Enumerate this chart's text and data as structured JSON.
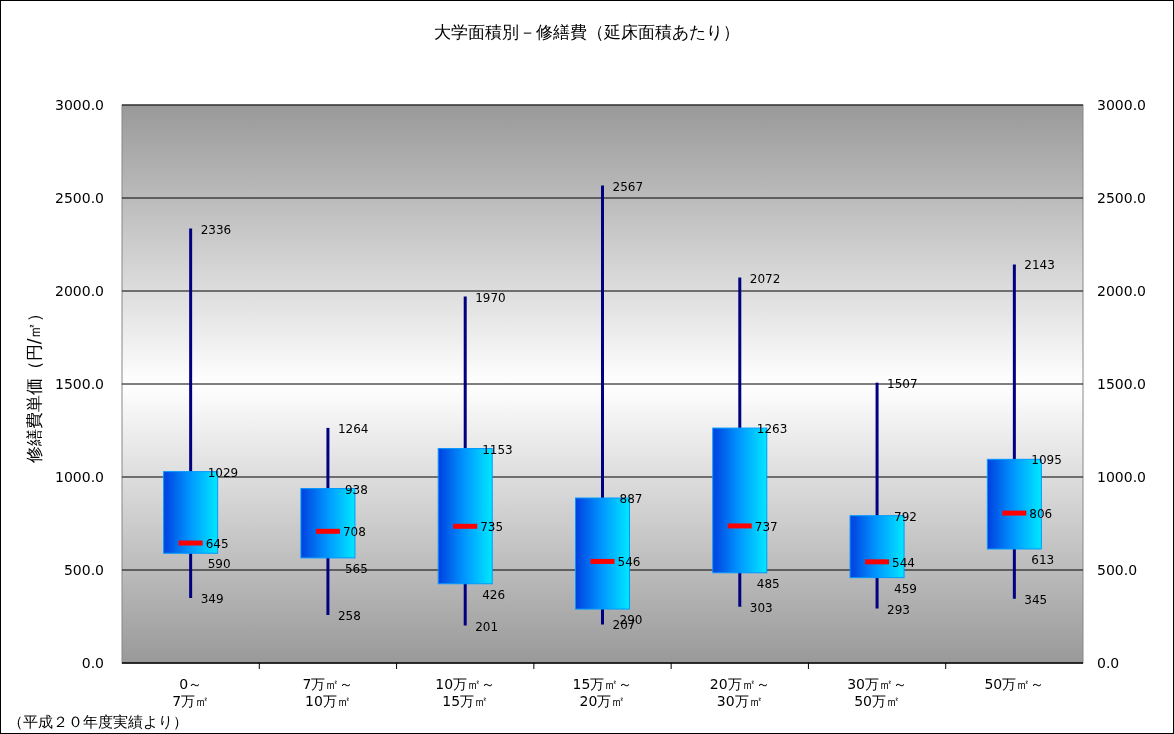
{
  "chart_data": {
    "type": "box",
    "title": "大学面積別－修繕費（延床面積あたり）",
    "ylabel": "修繕費単価（円/㎡）",
    "categories": [
      "0～\n7万㎡",
      "7万㎡～\n10万㎡",
      "10万㎡～\n15万㎡",
      "15万㎡～\n20万㎡",
      "20万㎡～\n30万㎡",
      "30万㎡～\n50万㎡",
      "50万㎡～"
    ],
    "series": [
      {
        "color": "#0099ff",
        "boxes": [
          {
            "low": 349,
            "q1": 590,
            "median": 645,
            "q3": 1029,
            "high": 2336
          },
          {
            "low": 258,
            "q1": 565,
            "median": 708,
            "q3": 938,
            "high": 1264
          },
          {
            "low": 201,
            "q1": 426,
            "median": 735,
            "q3": 1153,
            "high": 1970
          },
          {
            "low": 207,
            "q1": 290,
            "median": 546,
            "q3": 887,
            "high": 2567
          },
          {
            "low": 303,
            "q1": 485,
            "median": 737,
            "q3": 1263,
            "high": 2072
          },
          {
            "low": 293,
            "q1": 459,
            "median": 544,
            "q3": 792,
            "high": 1507
          },
          {
            "low": 345,
            "q1": 613,
            "median": 806,
            "q3": 1095,
            "high": 2143
          }
        ]
      }
    ],
    "ylim": [
      0,
      3000
    ],
    "yticks": [
      {
        "value": 0,
        "label": "0.0"
      },
      {
        "value": 500,
        "label": "500.0"
      },
      {
        "value": 1000,
        "label": "1000.0"
      },
      {
        "value": 1500,
        "label": "1500.0"
      },
      {
        "value": 2000,
        "label": "2000.0"
      },
      {
        "value": 2500,
        "label": "2500.0"
      },
      {
        "value": 3000,
        "label": "3000.0"
      }
    ],
    "y2lim": [
      0,
      3000
    ],
    "y2ticks": [
      {
        "value": 0,
        "label": "0.0"
      },
      {
        "value": 500,
        "label": "500.0"
      },
      {
        "value": 1000,
        "label": "1000.0"
      },
      {
        "value": 1500,
        "label": "1500.0"
      },
      {
        "value": 2000,
        "label": "2000.0"
      },
      {
        "value": 2500,
        "label": "2500.0"
      },
      {
        "value": 3000,
        "label": "3000.0"
      }
    ],
    "grid": "y",
    "annotations": [
      "（平成２０年度実績より）",
      {
        "text": "2336",
        "x": "0～\n7万㎡",
        "y": 2336
      },
      {
        "text": "1029",
        "x": "0～\n7万㎡",
        "y": 1029
      },
      {
        "text": "645",
        "x": "0～\n7万㎡",
        "y": 645
      },
      {
        "text": "590",
        "x": "0～\n7万㎡",
        "y": 590
      },
      {
        "text": "349",
        "x": "0～\n7万㎡",
        "y": 349
      },
      {
        "text": "1264",
        "x": "7万㎡～\n10万㎡",
        "y": 1264
      },
      {
        "text": "938",
        "x": "7万㎡～\n10万㎡",
        "y": 938
      },
      {
        "text": "708",
        "x": "7万㎡～\n10万㎡",
        "y": 708
      },
      {
        "text": "565",
        "x": "7万㎡～\n10万㎡",
        "y": 565
      },
      {
        "text": "258",
        "x": "7万㎡～\n10万㎡",
        "y": 258
      },
      {
        "text": "1970",
        "x": "10万㎡～\n15万㎡",
        "y": 1970
      },
      {
        "text": "1153",
        "x": "10万㎡～\n15万㎡",
        "y": 1153
      },
      {
        "text": "735",
        "x": "10万㎡～\n15万㎡",
        "y": 735
      },
      {
        "text": "426",
        "x": "10万㎡～\n15万㎡",
        "y": 426
      },
      {
        "text": "201",
        "x": "10万㎡～\n15万㎡",
        "y": 201
      },
      {
        "text": "2567",
        "x": "15万㎡～\n20万㎡",
        "y": 2567
      },
      {
        "text": "887",
        "x": "15万㎡～\n20万㎡",
        "y": 887
      },
      {
        "text": "546",
        "x": "15万㎡～\n20万㎡",
        "y": 546
      },
      {
        "text": "290",
        "x": "15万㎡～\n20万㎡",
        "y": 290
      },
      {
        "text": "207",
        "x": "15万㎡～\n20万㎡",
        "y": 207
      },
      {
        "text": "2072",
        "x": "20万㎡～\n30万㎡",
        "y": 2072
      },
      {
        "text": "1263",
        "x": "20万㎡～\n30万㎡",
        "y": 1263
      },
      {
        "text": "737",
        "x": "20万㎡～\n30万㎡",
        "y": 737
      },
      {
        "text": "485",
        "x": "20万㎡～\n30万㎡",
        "y": 485
      },
      {
        "text": "303",
        "x": "20万㎡～\n30万㎡",
        "y": 303
      },
      {
        "text": "1507",
        "x": "30万㎡～\n50万㎡",
        "y": 1507
      },
      {
        "text": "792",
        "x": "30万㎡～\n50万㎡",
        "y": 792
      },
      {
        "text": "544",
        "x": "30万㎡～\n50万㎡",
        "y": 544
      },
      {
        "text": "459",
        "x": "30万㎡～\n50万㎡",
        "y": 459
      },
      {
        "text": "293",
        "x": "30万㎡～\n50万㎡",
        "y": 293
      },
      {
        "text": "2143",
        "x": "50万㎡～",
        "y": 2143
      },
      {
        "text": "1095",
        "x": "50万㎡～",
        "y": 1095
      },
      {
        "text": "806",
        "x": "50万㎡～",
        "y": 806
      },
      {
        "text": "613",
        "x": "50万㎡～",
        "y": 613
      },
      {
        "text": "345",
        "x": "50万㎡～",
        "y": 345
      }
    ]
  }
}
